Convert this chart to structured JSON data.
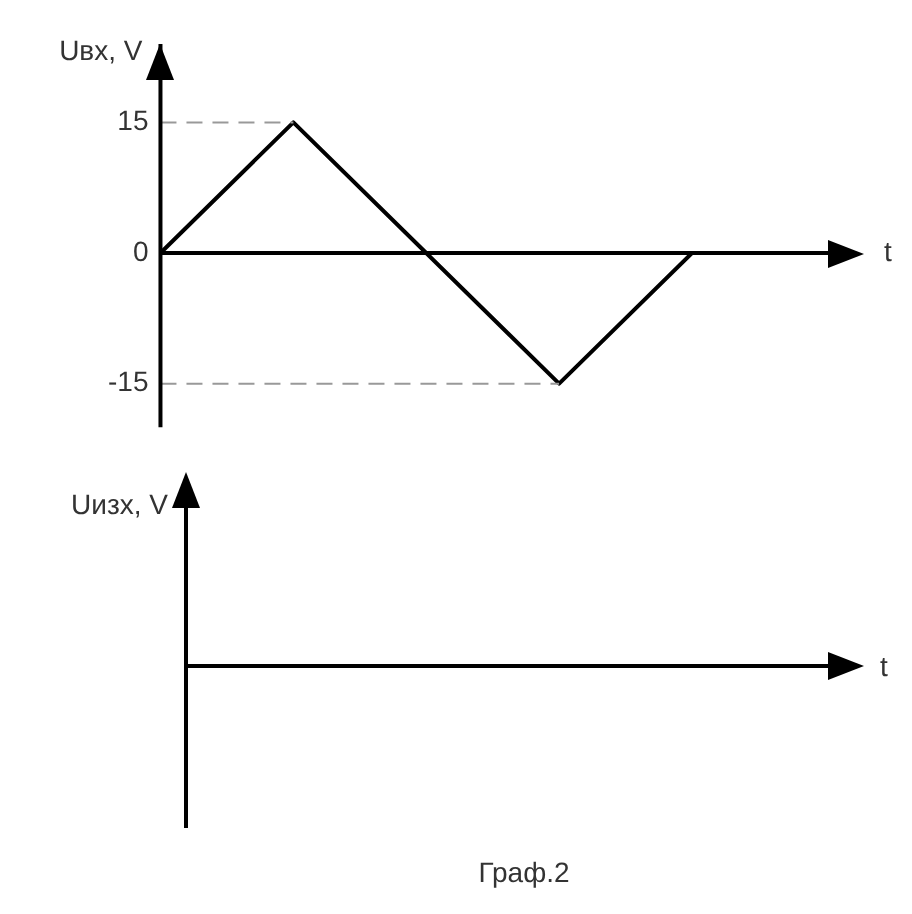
{
  "chart_data": [
    {
      "type": "line",
      "ylabel": "Uвх, V",
      "xlabel": "t",
      "categories": [
        null,
        null,
        null,
        null,
        null
      ],
      "ylim": [
        -20,
        24
      ],
      "yticks": [
        -15,
        0,
        15
      ],
      "legend": false,
      "marker": "none",
      "line_style": "solid",
      "series": [
        {
          "color": "#000000",
          "values": [
            0,
            15,
            0,
            -15,
            0
          ]
        }
      ],
      "ref_lines": [
        {
          "axis": "y",
          "value": 15,
          "color": "#999999",
          "line_style": "dashed"
        },
        {
          "axis": "y",
          "value": -15,
          "color": "#999999",
          "line_style": "dashed"
        }
      ]
    },
    {
      "type": "other",
      "ylabel": "Uизх, V",
      "xlabel": "t",
      "annotations": [
        "Граф.2"
      ]
    }
  ]
}
